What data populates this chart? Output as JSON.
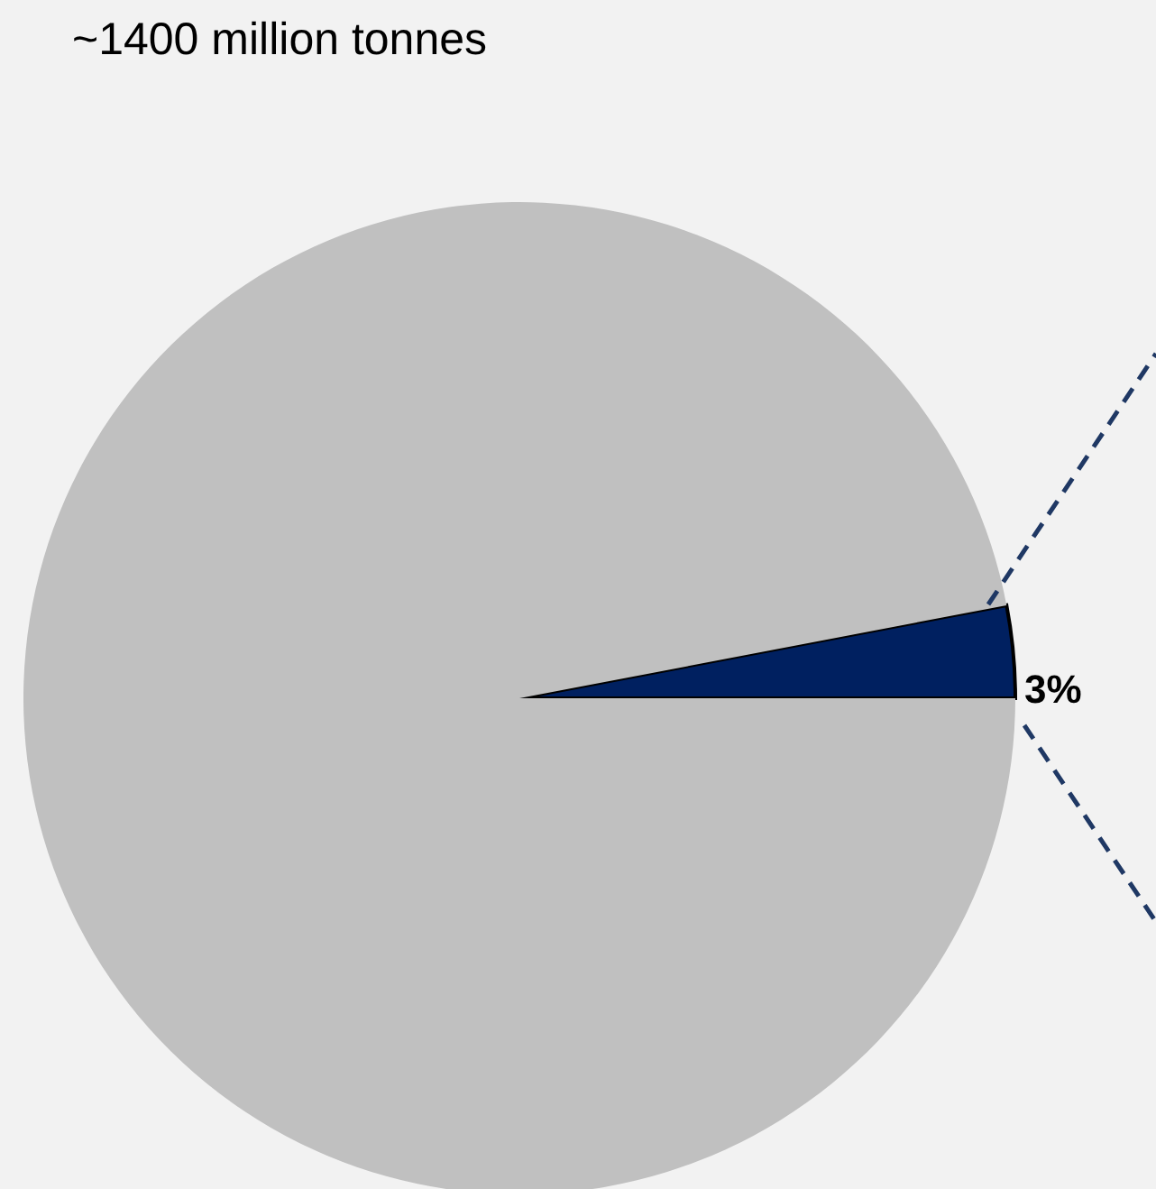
{
  "chart_data": {
    "type": "pie",
    "title": "~1400 million tonnes",
    "categories": [
      null,
      null
    ],
    "values": [
      3,
      97
    ],
    "colors": [
      "#002060",
      "#c0c0c0"
    ],
    "value_labels": [
      "3%",
      null
    ]
  }
}
